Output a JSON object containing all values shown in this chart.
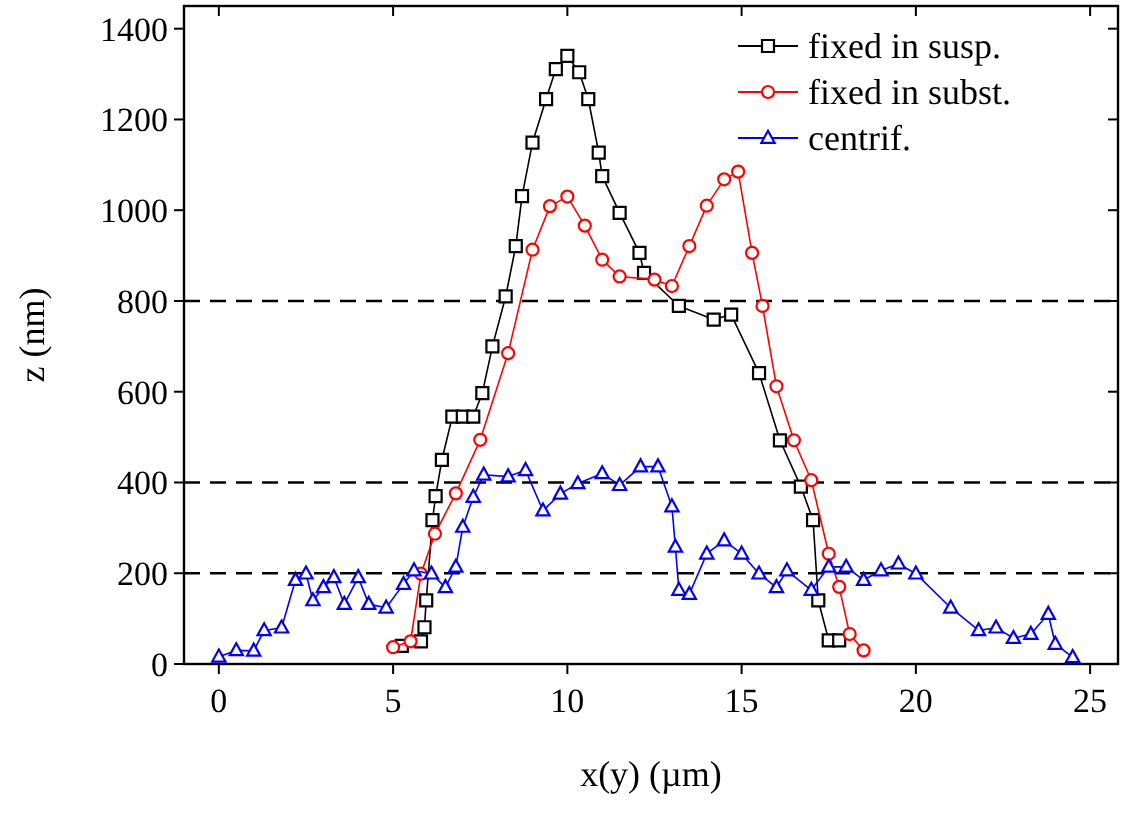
{
  "chart_data": {
    "type": "line",
    "xlabel": "x(y) (µm)",
    "ylabel": "z (nm)",
    "xlim": [
      -1,
      25.8
    ],
    "ylim": [
      0,
      1450
    ],
    "xticks": [
      0,
      5,
      10,
      15,
      20,
      25
    ],
    "yticks": [
      0,
      200,
      400,
      600,
      800,
      1000,
      1200,
      1400
    ],
    "grid": false,
    "legend": "top right",
    "line_style": "solid",
    "ref_lines": [
      {
        "axis": "y",
        "value": 200,
        "color": "#000000",
        "line_style": "dashed"
      },
      {
        "axis": "y",
        "value": 400,
        "color": "#000000",
        "line_style": "dashed"
      },
      {
        "axis": "y",
        "value": 800,
        "color": "#000000",
        "line_style": "dashed"
      }
    ],
    "series": [
      {
        "name": "fixed in susp.",
        "color": "#000000",
        "marker": "square",
        "x": [
          5.25,
          5.8,
          5.9,
          5.95,
          6.13,
          6.22,
          6.4,
          6.7,
          7.0,
          7.3,
          7.56,
          7.85,
          8.23,
          8.52,
          8.7,
          9.0,
          9.39,
          9.67,
          10.0,
          10.34,
          10.6,
          10.9,
          11.0,
          11.5,
          12.07,
          12.2,
          13.2,
          14.2,
          14.7,
          15.5,
          16.1,
          16.7,
          17.05,
          17.2,
          17.5,
          17.8
        ],
        "values": [
          40,
          50,
          81,
          140,
          317,
          370,
          450,
          545,
          545,
          545,
          597,
          700,
          810,
          921,
          1031,
          1149,
          1245,
          1311,
          1340,
          1304,
          1245,
          1127,
          1075,
          994,
          906,
          862,
          789,
          759,
          770,
          641,
          493,
          391,
          317,
          140,
          52,
          52
        ]
      },
      {
        "name": "fixed in subst.",
        "color": "#ff0000",
        "marker": "circle",
        "x": [
          5,
          5.5,
          5.8,
          6.2,
          6.8,
          7.5,
          8.3,
          9,
          9.5,
          10,
          10.5,
          11,
          11.5,
          12.5,
          13,
          13.5,
          14,
          14.5,
          14.9,
          15.3,
          15.6,
          16,
          16.5,
          17,
          17.5,
          17.8,
          18.1,
          18.5
        ],
        "values": [
          37,
          50,
          199,
          287,
          376,
          494,
          685,
          913,
          1009,
          1030,
          966,
          891,
          854,
          847,
          833,
          921,
          1010,
          1068,
          1085,
          906,
          789,
          612,
          493,
          405,
          243,
          170,
          66,
          30
        ]
      },
      {
        "name": "centrif.",
        "color": "#0000ff",
        "marker": "triangle",
        "x": [
          0,
          0.5,
          1,
          1.3,
          1.8,
          2.2,
          2.5,
          2.7,
          3.0,
          3.3,
          3.6,
          4,
          4.3,
          4.8,
          5.3,
          5.6,
          6.1,
          6.5,
          6.8,
          7.0,
          7.3,
          7.6,
          8.3,
          8.8,
          9.3,
          9.8,
          10.3,
          11,
          11.5,
          12.1,
          12.6,
          13,
          13.1,
          13.2,
          13.5,
          14,
          14.5,
          15,
          15.5,
          16,
          16.3,
          17,
          17.5,
          18,
          18.5,
          19,
          19.5,
          20,
          21,
          21.8,
          22.3,
          22.8,
          23.3,
          23.8,
          24,
          24.5
        ],
        "values": [
          16,
          30,
          29,
          74,
          80,
          185,
          199,
          140,
          169,
          191,
          132,
          191,
          132,
          124,
          176,
          206,
          199,
          169,
          214,
          302,
          368,
          417,
          413,
          427,
          338,
          375,
          398,
          420,
          394,
          435,
          435,
          347,
          258,
          163,
          154,
          243,
          272,
          243,
          199,
          169,
          206,
          163,
          214,
          214,
          185,
          206,
          221,
          199,
          124,
          74,
          80,
          57,
          66,
          110,
          44,
          15
        ]
      }
    ]
  }
}
